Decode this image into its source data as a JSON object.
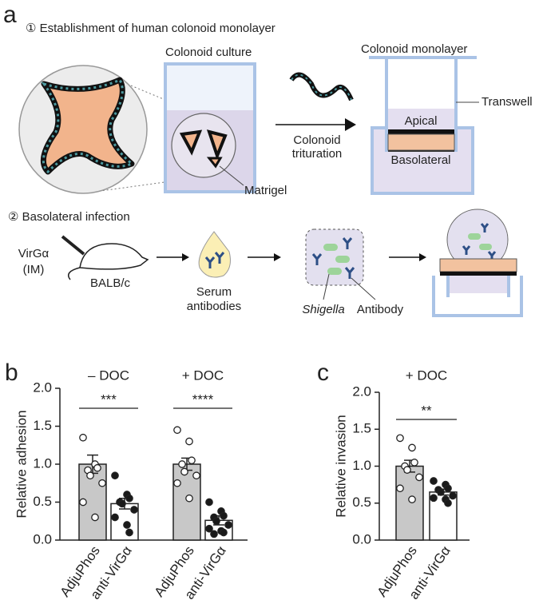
{
  "panel_a": {
    "label": "a",
    "step1": "① Establishment of human colonoid monolayer",
    "culture": "Colonoid culture",
    "monolayer": "Colonoid monolayer",
    "transwell": "Transwell",
    "apical": "Apical",
    "basolateral": "Basolateral",
    "trituration": [
      "Colonoid",
      "trituration"
    ],
    "matrigel": "Matrigel",
    "step2": "② Basolateral infection",
    "immunization": [
      "VirGα",
      "(IM)"
    ],
    "mouse": "BALB/c",
    "serum": [
      "Serum",
      "antibodies"
    ],
    "shigella": "Shigella",
    "antibody": "Antibody"
  },
  "chart_data": [
    {
      "type": "bar",
      "label": "b",
      "ylabel": "Relative adhesion",
      "ylim": [
        0,
        2
      ],
      "yticks": [
        {
          "value": 0,
          "label": "0.0"
        },
        0.5,
        {
          "value": 1,
          "label": "1.0"
        },
        1.5,
        {
          "value": 2,
          "label": "2.0"
        }
      ],
      "groups": [
        {
          "name": "– DOC",
          "annotation": "***"
        },
        {
          "name": "+ DOC",
          "annotation": "****"
        }
      ],
      "categories": [
        "AdjuPhos",
        "anti-VirGα",
        "AdjuPhos",
        "anti-VirGα"
      ],
      "values": [
        1.0,
        0.48,
        1.0,
        0.26
      ],
      "errors": [
        0.12,
        0.07,
        0.08,
        0.06
      ],
      "colors": [
        "#c8c8c8",
        "#ffffff",
        "#c8c8c8",
        "#ffffff"
      ],
      "point_colors": [
        "#ffffff",
        "#1a1a1a",
        "#ffffff",
        "#1a1a1a"
      ],
      "points": [
        [
          1.35,
          1.0,
          0.95,
          0.92,
          0.85,
          0.75,
          0.5,
          0.3
        ],
        [
          0.85,
          0.6,
          0.55,
          0.5,
          0.48,
          0.4,
          0.3,
          0.2,
          0.1
        ],
        [
          1.45,
          1.3,
          1.05,
          1.0,
          0.9,
          0.85,
          0.75,
          0.55
        ],
        [
          0.5,
          0.38,
          0.32,
          0.3,
          0.25,
          0.2,
          0.15,
          0.12,
          0.1,
          0.08
        ]
      ]
    },
    {
      "type": "bar",
      "label": "c",
      "ylabel": "Relative invasion",
      "ylim": [
        0,
        2
      ],
      "yticks": [
        {
          "value": 0,
          "label": "0.0"
        },
        0.5,
        {
          "value": 1,
          "label": "1.0"
        },
        1.5,
        {
          "value": 2,
          "label": "2.0"
        }
      ],
      "groups": [
        {
          "name": "+ DOC",
          "annotation": "**"
        }
      ],
      "categories": [
        "AdjuPhos",
        "anti-VirGα"
      ],
      "values": [
        1.0,
        0.65
      ],
      "errors": [
        0.08,
        0.04
      ],
      "colors": [
        "#c8c8c8",
        "#ffffff"
      ],
      "point_colors": [
        "#ffffff",
        "#1a1a1a"
      ],
      "points": [
        [
          1.38,
          1.25,
          1.05,
          1.0,
          0.95,
          0.85,
          0.7,
          0.55
        ],
        [
          0.8,
          0.75,
          0.7,
          0.68,
          0.65,
          0.6,
          0.57,
          0.55,
          0.5
        ]
      ]
    }
  ]
}
